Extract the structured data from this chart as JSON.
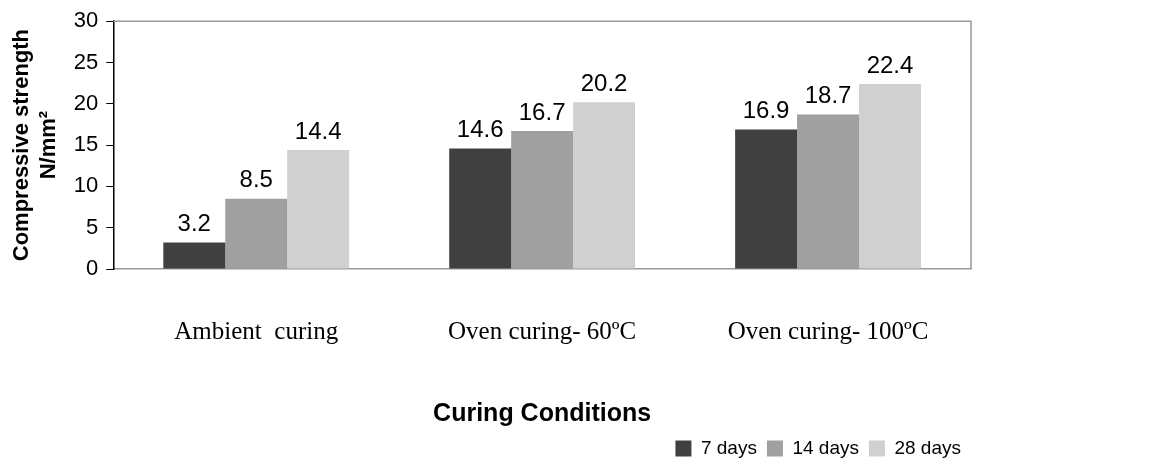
{
  "chart_data": {
    "type": "bar",
    "xlabel": "Curing Conditions",
    "ylabel": "Compressive strength\nN/mm²",
    "categories": [
      "Ambient  curing",
      "Oven curing- 60ºC",
      "Oven curing- 100ºC"
    ],
    "series": [
      {
        "name": "7 days",
        "color": "#404040",
        "values": [
          3.2,
          14.6,
          16.9
        ]
      },
      {
        "name": "14 days",
        "color": "#a0a0a0",
        "values": [
          8.5,
          16.7,
          18.7
        ]
      },
      {
        "name": "28 days",
        "color": "#d0d0d0",
        "values": [
          14.4,
          20.2,
          22.4
        ]
      }
    ],
    "ylim": [
      0,
      30
    ],
    "yticks": [
      0,
      5,
      10,
      15,
      20,
      25,
      30
    ],
    "grid": false,
    "legend": "bottom right",
    "data_labels": true
  }
}
